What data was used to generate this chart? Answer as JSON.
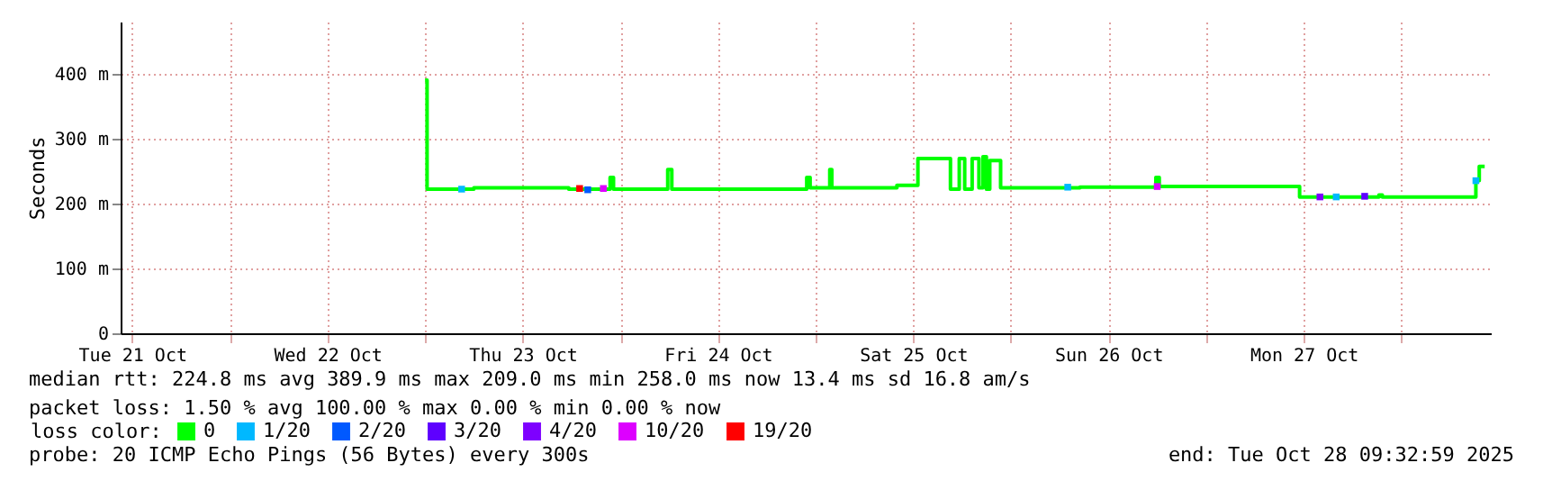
{
  "chart_data": {
    "type": "step",
    "ylabel": "Seconds",
    "legend_title": "loss color:",
    "legend": "bottom left",
    "grid": true,
    "xlim": [
      "2025-10-21T10:35",
      "2025-10-28T11:00"
    ],
    "xticks": [
      {
        "value": "2025-10-21T12:00",
        "label": "Tue 21 Oct"
      },
      {
        "value": "2025-10-22T00:00",
        "label": null
      },
      {
        "value": "2025-10-22T12:00",
        "label": "Wed 22 Oct"
      },
      {
        "value": "2025-10-23T00:00",
        "label": null
      },
      {
        "value": "2025-10-23T12:00",
        "label": "Thu 23 Oct"
      },
      {
        "value": "2025-10-24T00:00",
        "label": null
      },
      {
        "value": "2025-10-24T12:00",
        "label": "Fri 24 Oct"
      },
      {
        "value": "2025-10-25T00:00",
        "label": null
      },
      {
        "value": "2025-10-25T12:00",
        "label": "Sat 25 Oct"
      },
      {
        "value": "2025-10-26T00:00",
        "label": null
      },
      {
        "value": "2025-10-26T12:00",
        "label": "Sun 26 Oct"
      },
      {
        "value": "2025-10-27T00:00",
        "label": null
      },
      {
        "value": "2025-10-27T12:00",
        "label": "Mon 27 Oct"
      },
      {
        "value": "2025-10-28T00:00",
        "label": null
      }
    ],
    "ylim": [
      0,
      480
    ],
    "yticks": [
      0,
      {
        "value": 100,
        "label": "100 m"
      },
      {
        "value": 200,
        "label": "200 m"
      },
      {
        "value": 300,
        "label": "300 m"
      },
      {
        "value": 400,
        "label": "400 m"
      }
    ],
    "annotations": [
      "median rtt:  224.8 ms avg  389.9 ms max  209.0 ms min  258.0 ms now  13.4 ms sd  16.8   am/s",
      "packet loss: 1.50 % avg  100.00 % max  0.00 % min  0.00 % now",
      "probe:       20 ICMP Echo Pings (56 Bytes) every 300s",
      "end: Tue Oct 28 09:32:59 2025"
    ],
    "series": [
      {
        "name": "0",
        "color": "#00ff00",
        "x": [
          "2025-10-23T00:00",
          "2025-10-23T00:15",
          "2025-10-23T06:00",
          "2025-10-23T17:40",
          "2025-10-23T22:45",
          "2025-10-23T23:10",
          "2025-10-24T05:50",
          "2025-10-24T06:20",
          "2025-10-24T22:55",
          "2025-10-24T23:20",
          "2025-10-25T01:45",
          "2025-10-25T02:00",
          "2025-10-25T10:00",
          "2025-10-25T11:30",
          "2025-10-25T12:35",
          "2025-10-25T16:35",
          "2025-10-25T17:40",
          "2025-10-25T18:20",
          "2025-10-25T19:15",
          "2025-10-25T20:05",
          "2025-10-25T20:35",
          "2025-10-25T21:00",
          "2025-10-25T21:25",
          "2025-10-25T22:45",
          "2025-10-26T08:30",
          "2025-10-26T17:50",
          "2025-10-26T18:15",
          "2025-10-27T11:30",
          "2025-10-27T21:15",
          "2025-10-27T21:40",
          "2025-10-28T08:45",
          "2025-10-28T09:10",
          "2025-10-28T09:35",
          "2025-10-28T10:15"
        ],
        "values": [
          390,
          222,
          224,
          222,
          240,
          222,
          252,
          222,
          240,
          224,
          252,
          224,
          228,
          228,
          269,
          222,
          269,
          222,
          269,
          224,
          272,
          222,
          266,
          224,
          225,
          240,
          226,
          210,
          213,
          210,
          210,
          235,
          257,
          257
        ]
      },
      {
        "name": "1/20",
        "color": "#00b8ff",
        "type": "scatter",
        "marker": "square",
        "x": [
          "2025-10-23T04:30",
          "2025-10-26T07:00",
          "2025-10-27T16:00",
          "2025-10-28T09:10"
        ],
        "values": [
          222,
          225,
          210,
          235
        ]
      },
      {
        "name": "2/20",
        "color": "#0059ff",
        "type": "scatter",
        "marker": "square",
        "x": [
          "2025-10-23T20:00"
        ],
        "values": [
          221
        ]
      },
      {
        "name": "3/20",
        "color": "#5e00ff",
        "type": "scatter",
        "marker": "square",
        "x": [
          "2025-10-27T19:30"
        ],
        "values": [
          211
        ]
      },
      {
        "name": "4/20",
        "color": "#7e00ff",
        "type": "scatter",
        "marker": "square",
        "x": [
          "2025-10-27T14:00"
        ],
        "values": [
          210
        ]
      },
      {
        "name": "10/20",
        "color": "#dd00ff",
        "type": "scatter",
        "marker": "square",
        "x": [
          "2025-10-23T21:55",
          "2025-10-26T18:00"
        ],
        "values": [
          223,
          226
        ]
      },
      {
        "name": "19/20",
        "color": "#ff0000",
        "type": "scatter",
        "marker": "square",
        "x": [
          "2025-10-23T19:00"
        ],
        "values": [
          223
        ]
      }
    ]
  }
}
